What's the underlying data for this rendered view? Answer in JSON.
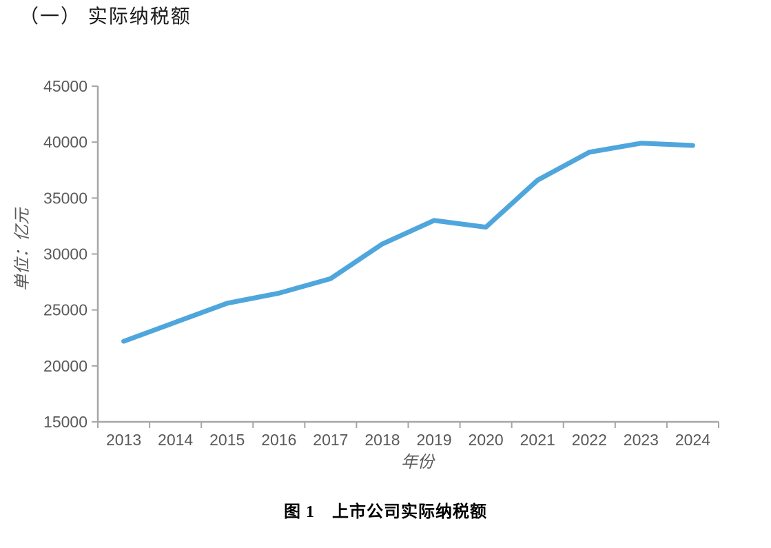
{
  "page": {
    "heading": "（一） 实际纳税额",
    "caption": "图 1　上市公司实际纳税额"
  },
  "chart_data": {
    "type": "line",
    "title": "上市公司实际纳税额",
    "categories": [
      "2013",
      "2014",
      "2015",
      "2016",
      "2017",
      "2018",
      "2019",
      "2020",
      "2021",
      "2022",
      "2023",
      "2024"
    ],
    "values": [
      22200,
      23900,
      25600,
      26500,
      27800,
      30900,
      33000,
      32400,
      36600,
      39100,
      39900,
      39700
    ],
    "xlabel": "年份",
    "ylabel": "单位：亿元",
    "ylim": [
      15000,
      45000
    ],
    "yticks": [
      15000,
      20000,
      25000,
      30000,
      35000,
      40000,
      45000
    ],
    "grid": false,
    "legend": "none",
    "line_color": "#4fa6dd",
    "axis_color": "#a6a6a6",
    "label_color": "#595959"
  }
}
